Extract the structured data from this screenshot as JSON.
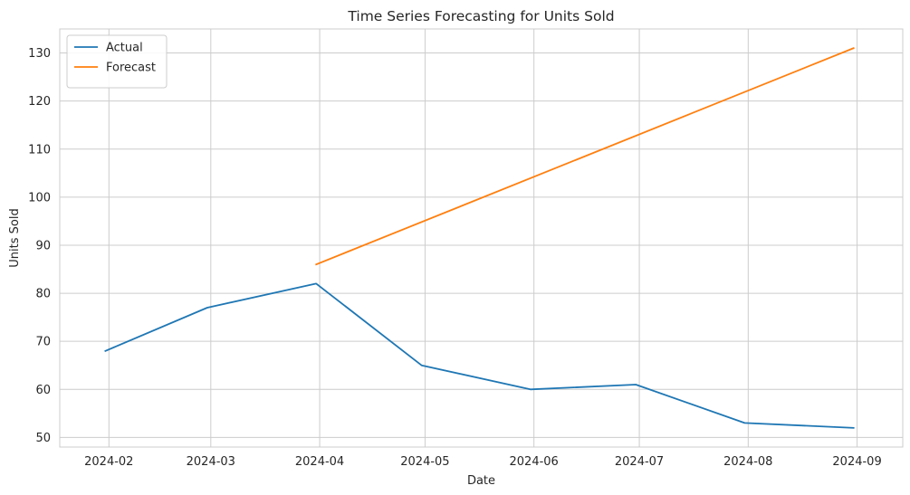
{
  "chart_data": {
    "type": "line",
    "title": "Time Series Forecasting for Units Sold",
    "xlabel": "Date",
    "ylabel": "Units Sold",
    "x_ticks": [
      "2024-02",
      "2024-03",
      "2024-04",
      "2024-05",
      "2024-06",
      "2024-07",
      "2024-08",
      "2024-09"
    ],
    "y_ticks": [
      50,
      60,
      70,
      80,
      90,
      100,
      110,
      120,
      130
    ],
    "ylim": [
      48,
      135
    ],
    "xlim": [
      "2024-01-18",
      "2024-09-14"
    ],
    "grid": true,
    "legend_position": "upper-left",
    "series": [
      {
        "name": "Actual",
        "color": "#1f77b4",
        "points": [
          {
            "x": "2024-01-31",
            "y": 68
          },
          {
            "x": "2024-02-29",
            "y": 77
          },
          {
            "x": "2024-03-31",
            "y": 82
          },
          {
            "x": "2024-04-30",
            "y": 65
          },
          {
            "x": "2024-05-31",
            "y": 60
          },
          {
            "x": "2024-06-30",
            "y": 61
          },
          {
            "x": "2024-07-31",
            "y": 53
          },
          {
            "x": "2024-08-31",
            "y": 52
          }
        ]
      },
      {
        "name": "Forecast",
        "color": "#ff7f0e",
        "points": [
          {
            "x": "2024-03-31",
            "y": 86
          },
          {
            "x": "2024-08-31",
            "y": 131
          }
        ]
      }
    ]
  }
}
